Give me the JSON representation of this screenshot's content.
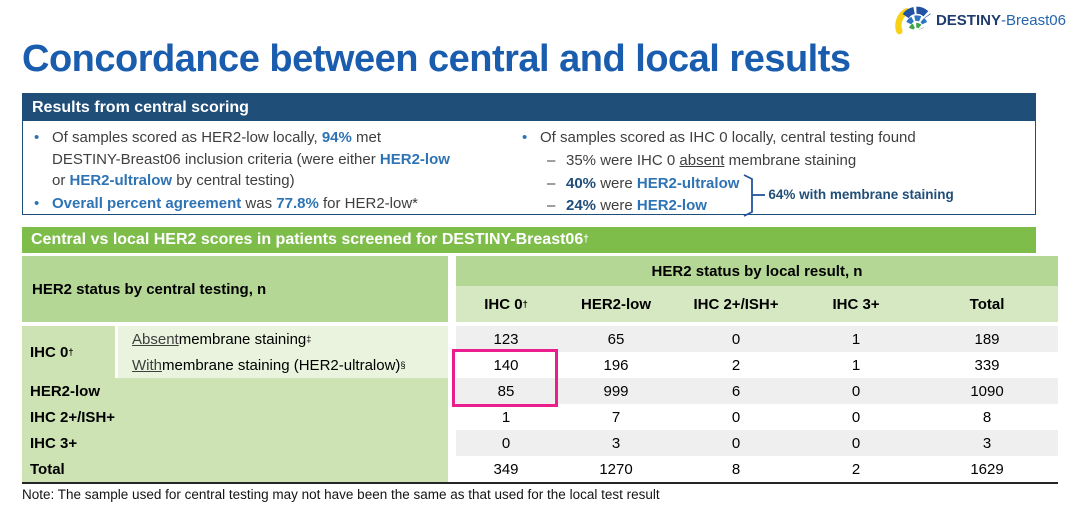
{
  "logo": {
    "bold": "DESTINY",
    "rest": "-Breast06"
  },
  "title": "Concordance between central and local results",
  "glyphs": {
    "bullet": "•",
    "dash": "–"
  },
  "central_scoring": {
    "header": "Results from central scoring",
    "left": {
      "bullet1": {
        "lines": [
          [
            {
              "t": "Of samples scored as HER2-low locally, ",
              "s": "p"
            },
            {
              "t": "94%",
              "s": "bb"
            },
            {
              "t": " met",
              "s": "p"
            }
          ],
          [
            {
              "t": "DESTINY-Breast06 inclusion criteria (were either ",
              "s": "p"
            },
            {
              "t": "HER2-low",
              "s": "bb"
            }
          ],
          [
            {
              "t": "or ",
              "s": "p"
            },
            {
              "t": "HER2-ultralow",
              "s": "bb"
            },
            {
              "t": " by central testing)",
              "s": "p"
            }
          ]
        ]
      },
      "bullet2": {
        "lines": [
          [
            {
              "t": "Overall percent agreement",
              "s": "bb"
            },
            {
              "t": " was ",
              "s": "p"
            },
            {
              "t": "77.8%",
              "s": "bb"
            },
            {
              "t": " for HER2-low*",
              "s": "p"
            }
          ]
        ]
      }
    },
    "right": {
      "bullet": "Of samples scored as IHC 0 locally, central testing found",
      "sub1": [
        {
          "t": "35% were IHC 0 ",
          "s": "p"
        },
        {
          "t": "absent",
          "s": "u"
        },
        {
          "t": " membrane staining",
          "s": "p"
        }
      ],
      "sub2": [
        {
          "t": "40%",
          "s": "bn"
        },
        {
          "t": " were ",
          "s": "p"
        },
        {
          "t": "HER2-ultralow",
          "s": "bb"
        }
      ],
      "sub3": [
        {
          "t": "24%",
          "s": "bn"
        },
        {
          "t": " were ",
          "s": "p"
        },
        {
          "t": "HER2-low",
          "s": "bb"
        }
      ],
      "bracket_label": "64% with membrane staining"
    }
  },
  "table_section": {
    "header": "Central vs local HER2 scores in patients screened for DESTINY-Breast06",
    "header_sup": "†"
  },
  "table": {
    "row_group_header": "HER2 status by central testing, n",
    "col_group_header": "HER2 status by local result, n",
    "columns": [
      {
        "text": "IHC 0",
        "sup": "†"
      },
      {
        "text": "HER2-low",
        "sup": ""
      },
      {
        "text": "IHC 2+/ISH+",
        "sup": ""
      },
      {
        "text": "IHC 3+",
        "sup": ""
      },
      {
        "text": "Total",
        "sup": ""
      }
    ],
    "ihc0_group": {
      "text": "IHC 0",
      "sup": "†"
    },
    "rows": [
      {
        "sub": {
          "u": "Absent",
          "rest": " membrane staining",
          "sup": "‡"
        },
        "values": [
          123,
          65,
          0,
          1,
          189
        ]
      },
      {
        "sub": {
          "u": "With",
          "rest": " membrane staining (HER2-ultralow)",
          "sup": "§"
        },
        "values": [
          140,
          196,
          2,
          1,
          339
        ]
      },
      {
        "label": "HER2-low",
        "values": [
          85,
          999,
          6,
          0,
          1090
        ]
      },
      {
        "label": "IHC 2+/ISH+",
        "values": [
          1,
          7,
          0,
          0,
          8
        ]
      },
      {
        "label": "IHC 3+",
        "values": [
          0,
          3,
          0,
          0,
          3
        ]
      },
      {
        "label": "Total",
        "values": [
          349,
          1270,
          8,
          2,
          1629
        ]
      }
    ]
  },
  "note": "Note: The sample used for central testing may not have been the same as that used for the local test result",
  "colors": {
    "title_blue": "#1A5CAD",
    "navy": "#1F4E79",
    "accent_blue": "#2E74B5",
    "green_bar": "#7FBD4A",
    "header_green": "#B4D795",
    "row_green": "#CDE3B4",
    "sublabel_green": "#E9F3DE",
    "stripe_gray": "#EFEFEF",
    "highlight_pink": "#EA1E8C",
    "logo_yellow": "#F7D117",
    "logo_green": "#3FA648"
  }
}
